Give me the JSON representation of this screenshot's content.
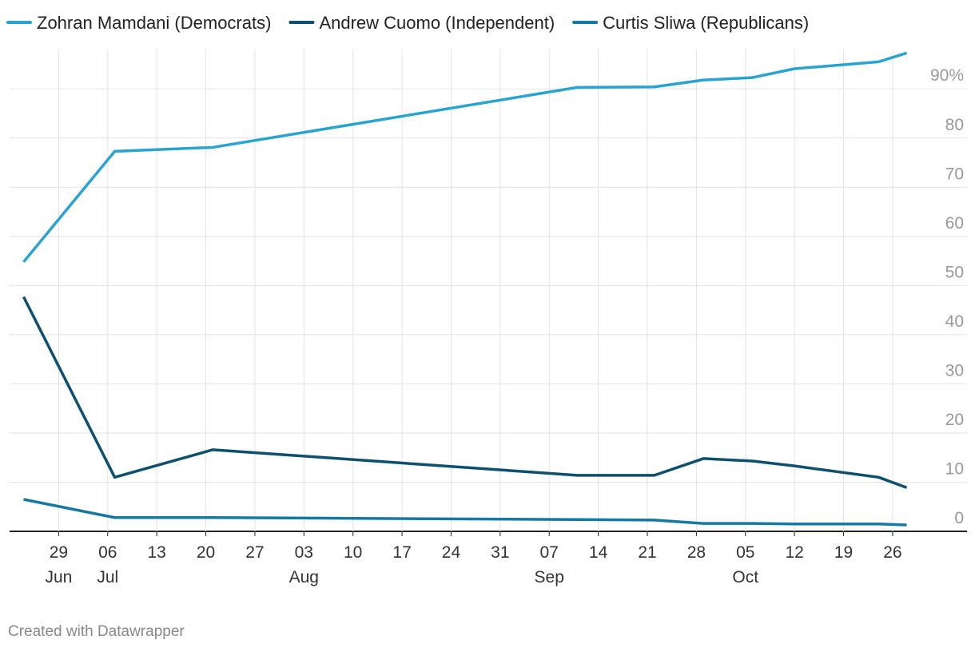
{
  "chart_data": {
    "type": "line",
    "x": [
      "06-24",
      "07-07",
      "07-21",
      "09-11",
      "09-22",
      "09-29",
      "10-06",
      "10-12",
      "10-24",
      "10-28"
    ],
    "series": [
      {
        "name": "Zohran Mamdani (Democrats)",
        "color": "#29a3cf",
        "values": [
          54.8,
          77.3,
          78.1,
          90.3,
          90.4,
          91.8,
          92.3,
          94.1,
          95.5,
          97.3
        ]
      },
      {
        "name": "Andrew Cuomo (Independent)",
        "color": "#0d4f6f",
        "values": [
          47.7,
          11.0,
          16.6,
          11.4,
          11.4,
          14.8,
          14.3,
          13.3,
          11.0,
          8.9
        ]
      },
      {
        "name": "Curtis Sliwa (Republicans)",
        "color": "#1579a3",
        "values": [
          6.5,
          2.8,
          2.8,
          2.4,
          2.3,
          1.6,
          1.6,
          1.5,
          1.5,
          1.3
        ]
      }
    ],
    "xlim": [
      "06-22",
      "10-30"
    ],
    "xticks": [
      {
        "value": "06-29",
        "label": "29"
      },
      {
        "value": "07-06",
        "label": "06"
      },
      {
        "value": "07-13",
        "label": "13"
      },
      {
        "value": "07-20",
        "label": "20"
      },
      {
        "value": "07-27",
        "label": "27"
      },
      {
        "value": "08-03",
        "label": "03"
      },
      {
        "value": "08-10",
        "label": "10"
      },
      {
        "value": "08-17",
        "label": "17"
      },
      {
        "value": "08-24",
        "label": "24"
      },
      {
        "value": "08-31",
        "label": "31"
      },
      {
        "value": "09-07",
        "label": "07"
      },
      {
        "value": "09-14",
        "label": "14"
      },
      {
        "value": "09-21",
        "label": "21"
      },
      {
        "value": "09-28",
        "label": "28"
      },
      {
        "value": "10-05",
        "label": "05"
      },
      {
        "value": "10-12",
        "label": "12"
      },
      {
        "value": "10-19",
        "label": "19"
      },
      {
        "value": "10-26",
        "label": "26"
      }
    ],
    "month_labels": [
      {
        "value": "06-29",
        "label": "Jun"
      },
      {
        "value": "07-06",
        "label": "Jul"
      },
      {
        "value": "08-03",
        "label": "Aug"
      },
      {
        "value": "09-07",
        "label": "Sep"
      },
      {
        "value": "10-05",
        "label": "Oct"
      }
    ],
    "ylim": [
      0,
      98
    ],
    "yticks": [
      0,
      10,
      20,
      30,
      40,
      50,
      60,
      70,
      80,
      {
        "value": 90,
        "label": "90%"
      }
    ],
    "grid": true,
    "footer": "Created with Datawrapper"
  }
}
